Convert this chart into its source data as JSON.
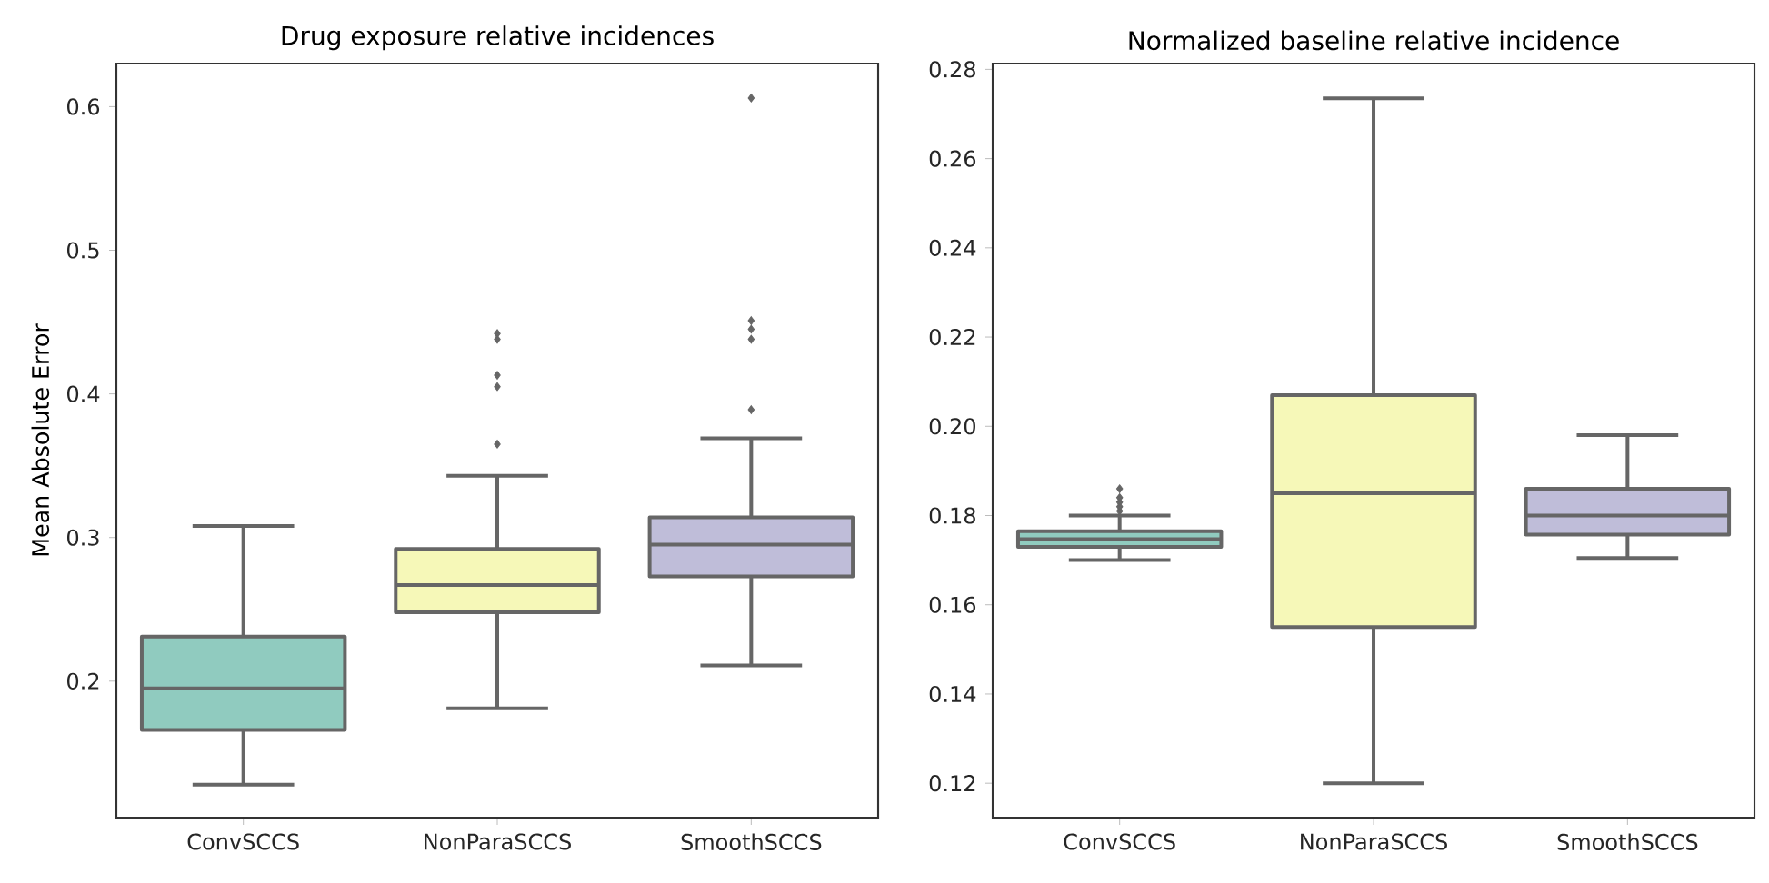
{
  "chart_data": [
    {
      "type": "box",
      "title": "Drug exposure relative incidences",
      "ylabel": "Mean Absolute Error",
      "categories": [
        "ConvSCCS",
        "NonParaSCCS",
        "SmoothSCCS"
      ],
      "colors": [
        "#90cbbf",
        "#f6f8b8",
        "#bfbdd9"
      ],
      "marker": "diamond",
      "ylim": [
        0.105,
        0.63
      ],
      "yticks": [
        0.2,
        0.3,
        0.4,
        0.5,
        0.6
      ],
      "boxes": [
        {
          "low": 0.128,
          "q1": 0.166,
          "median": 0.195,
          "q3": 0.231,
          "high": 0.308
        },
        {
          "low": 0.181,
          "q1": 0.248,
          "median": 0.267,
          "q3": 0.292,
          "high": 0.343,
          "outliers": [
            0.365,
            0.405,
            0.413,
            0.438,
            0.442
          ]
        },
        {
          "low": 0.211,
          "q1": 0.273,
          "median": 0.295,
          "q3": 0.314,
          "high": 0.369,
          "outliers": [
            0.389,
            0.438,
            0.445,
            0.451,
            0.606
          ]
        }
      ]
    },
    {
      "type": "box",
      "title": "Normalized baseline relative incidence",
      "categories": [
        "ConvSCCS",
        "NonParaSCCS",
        "SmoothSCCS"
      ],
      "colors": [
        "#90cbbf",
        "#f6f8b8",
        "#bfbdd9"
      ],
      "marker": "diamond",
      "ylim": [
        0.1123,
        0.2813
      ],
      "yticks": [
        {
          "value": 0.12,
          "label": "0.12"
        },
        {
          "value": 0.14,
          "label": "0.14"
        },
        {
          "value": 0.16,
          "label": "0.16"
        },
        {
          "value": 0.18,
          "label": "0.18"
        },
        {
          "value": 0.2,
          "label": "0.20"
        },
        {
          "value": 0.22,
          "label": "0.22"
        },
        {
          "value": 0.24,
          "label": "0.24"
        },
        {
          "value": 0.26,
          "label": "0.26"
        },
        {
          "value": 0.28,
          "label": "0.28"
        }
      ],
      "boxes": [
        {
          "low": 0.17,
          "q1": 0.173,
          "median": 0.1747,
          "q3": 0.1765,
          "high": 0.18,
          "outliers": [
            0.181,
            0.182,
            0.183,
            0.184,
            0.186
          ]
        },
        {
          "low": 0.12,
          "q1": 0.155,
          "median": 0.185,
          "q3": 0.207,
          "high": 0.2735
        },
        {
          "low": 0.1705,
          "q1": 0.1757,
          "median": 0.18,
          "q3": 0.186,
          "high": 0.198
        }
      ]
    }
  ]
}
